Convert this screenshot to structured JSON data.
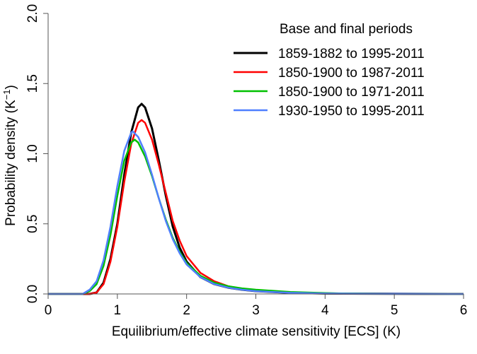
{
  "chart_data": {
    "type": "line",
    "title": "",
    "xlabel": "Equilibrium/effective climate sensitivity [ECS] (K)",
    "ylabel": "Probability density (K",
    "ylabel_superscript": "−1",
    "ylabel_suffix": ")",
    "xlim": [
      0,
      6
    ],
    "ylim": [
      0,
      2
    ],
    "xticks": [
      "0",
      "1",
      "2",
      "3",
      "4",
      "5",
      "6"
    ],
    "yticks": [
      "0.0",
      "0.5",
      "1.0",
      "1.5",
      "2.0"
    ],
    "grid": false,
    "legend": {
      "title": "Base and final periods",
      "placement": "top-right"
    },
    "series": [
      {
        "name": "1859-1882 to 1995-2011",
        "color": "#000000",
        "x": [
          0,
          0.6,
          0.7,
          0.8,
          0.9,
          1.0,
          1.1,
          1.2,
          1.3,
          1.35,
          1.4,
          1.5,
          1.6,
          1.7,
          1.8,
          1.9,
          2.0,
          2.2,
          2.4,
          2.6,
          2.8,
          3.0,
          3.5,
          4.0,
          5.0,
          6.0
        ],
        "y": [
          0,
          0,
          0.01,
          0.08,
          0.25,
          0.5,
          0.85,
          1.15,
          1.33,
          1.355,
          1.33,
          1.18,
          0.95,
          0.7,
          0.48,
          0.33,
          0.23,
          0.12,
          0.07,
          0.045,
          0.03,
          0.02,
          0.008,
          0.003,
          0.001,
          0
        ]
      },
      {
        "name": "1850-1900 to 1987-2011",
        "color": "#ff0000",
        "x": [
          0,
          0.6,
          0.7,
          0.8,
          0.9,
          1.0,
          1.1,
          1.2,
          1.3,
          1.35,
          1.4,
          1.5,
          1.6,
          1.7,
          1.8,
          1.9,
          2.0,
          2.2,
          2.4,
          2.6,
          2.8,
          3.0,
          3.5,
          4.0,
          5.0,
          6.0
        ],
        "y": [
          0,
          0,
          0.01,
          0.07,
          0.23,
          0.48,
          0.8,
          1.07,
          1.22,
          1.24,
          1.22,
          1.1,
          0.92,
          0.72,
          0.52,
          0.38,
          0.27,
          0.15,
          0.09,
          0.055,
          0.035,
          0.025,
          0.01,
          0.004,
          0.001,
          0
        ]
      },
      {
        "name": "1850-1900 to 1971-2011",
        "color": "#00c000",
        "x": [
          0,
          0.5,
          0.6,
          0.7,
          0.8,
          0.9,
          1.0,
          1.1,
          1.2,
          1.25,
          1.3,
          1.4,
          1.5,
          1.6,
          1.7,
          1.8,
          1.9,
          2.0,
          2.2,
          2.4,
          2.6,
          2.8,
          3.0,
          3.5,
          4.0,
          4.2,
          5.0,
          6.0
        ],
        "y": [
          0,
          0,
          0.02,
          0.07,
          0.2,
          0.42,
          0.7,
          0.95,
          1.08,
          1.1,
          1.08,
          0.98,
          0.84,
          0.68,
          0.53,
          0.4,
          0.3,
          0.22,
          0.13,
          0.08,
          0.055,
          0.04,
          0.03,
          0.014,
          0.006,
          0.004,
          0.001,
          0
        ]
      },
      {
        "name": "1930-1950 to 1995-2011",
        "color": "#4f7fff",
        "x": [
          0,
          0.5,
          0.6,
          0.7,
          0.8,
          0.9,
          1.0,
          1.1,
          1.2,
          1.22,
          1.3,
          1.4,
          1.5,
          1.6,
          1.7,
          1.8,
          1.9,
          2.0,
          2.2,
          2.4,
          2.6,
          2.8,
          3.0,
          3.5,
          4.0,
          5.0,
          6.0
        ],
        "y": [
          0,
          0,
          0.03,
          0.09,
          0.24,
          0.48,
          0.77,
          1.02,
          1.15,
          1.16,
          1.12,
          1.01,
          0.85,
          0.68,
          0.52,
          0.39,
          0.29,
          0.21,
          0.12,
          0.07,
          0.045,
          0.03,
          0.02,
          0.008,
          0.003,
          0.001,
          0
        ]
      }
    ]
  }
}
